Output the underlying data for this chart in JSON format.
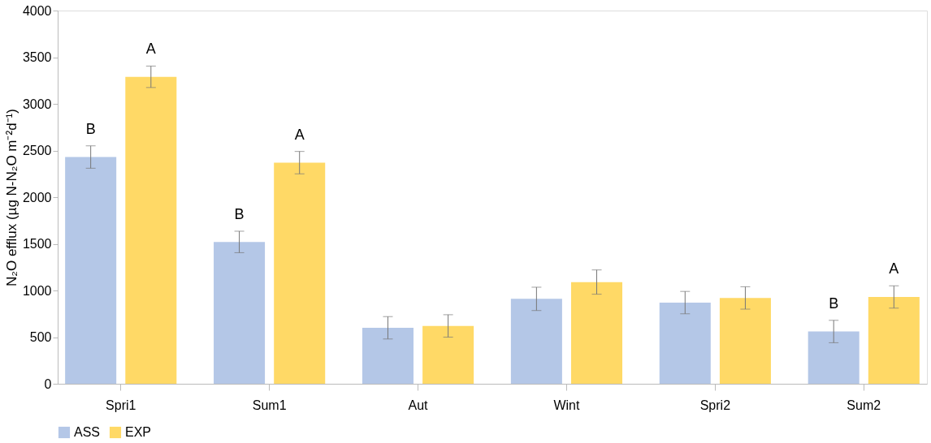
{
  "chart_data": {
    "type": "bar",
    "ylabel": "N₂O efflux  (µg N-N₂O m⁻²d⁻¹)",
    "categories": [
      "Spri1",
      "Sum1",
      "Aut",
      "Wint",
      "Spri2",
      "Sum2"
    ],
    "series": [
      {
        "name": "ASS",
        "color": "#b4c7e7",
        "values": [
          2430,
          1520,
          600,
          910,
          870,
          560
        ],
        "errors": [
          120,
          115,
          120,
          125,
          120,
          120
        ],
        "value_labels": [
          "B",
          "B",
          null,
          null,
          null,
          "B"
        ]
      },
      {
        "name": "EXP",
        "color": "#ffd966",
        "values": [
          3290,
          2370,
          620,
          1090,
          920,
          930
        ],
        "errors": [
          115,
          120,
          120,
          130,
          120,
          120
        ],
        "value_labels": [
          "A",
          "A",
          null,
          null,
          null,
          "A"
        ]
      }
    ],
    "ylim": [
      0,
      4000
    ],
    "yticks": [
      0,
      500,
      1000,
      1500,
      2000,
      2500,
      3000,
      3500,
      4000
    ],
    "grid": false,
    "legend": "bottom"
  }
}
